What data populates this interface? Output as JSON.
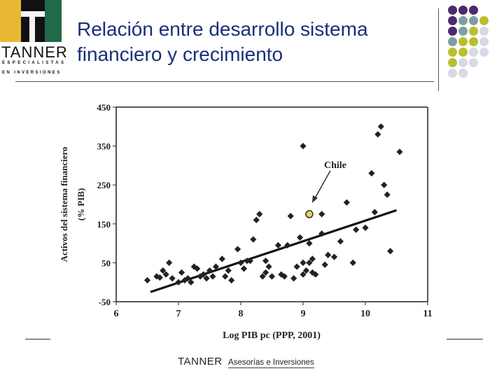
{
  "slide": {
    "title_line1": "Relación entre desarrollo sistema",
    "title_line2": "financiero y crecimiento"
  },
  "logo": {
    "name": "TANNER",
    "sub1": "ESPECIALISTAS",
    "sub2": "EN INVERSIONES",
    "colors": [
      "#e9b833",
      "#111111",
      "#1f6b4a"
    ]
  },
  "footer": {
    "brand": "TANNER",
    "tagline": "Asesorías e Inversiones"
  },
  "decor": {
    "dot_colors": [
      "#4a2b6b",
      "#7f9ea3",
      "#b9bf2f",
      "#d9d9e6"
    ]
  },
  "chart_data": {
    "type": "scatter",
    "title": "",
    "xlabel": "Log PIB pc (PPP, 2001)",
    "ylabel_line1": "Activos del sistema financiero",
    "ylabel_line2": "(% PIB)",
    "xlim": [
      6,
      11
    ],
    "ylim": [
      -50,
      450
    ],
    "xticks": [
      6,
      7,
      8,
      9,
      10,
      11
    ],
    "yticks": [
      -50,
      50,
      150,
      250,
      350,
      450
    ],
    "grid": false,
    "points": [
      [
        6.5,
        5
      ],
      [
        6.65,
        15
      ],
      [
        6.7,
        12
      ],
      [
        6.75,
        30
      ],
      [
        6.8,
        20
      ],
      [
        6.85,
        50
      ],
      [
        6.9,
        10
      ],
      [
        7.0,
        0
      ],
      [
        7.05,
        25
      ],
      [
        7.1,
        5
      ],
      [
        7.15,
        10
      ],
      [
        7.2,
        0
      ],
      [
        7.25,
        40
      ],
      [
        7.3,
        35
      ],
      [
        7.35,
        15
      ],
      [
        7.4,
        20
      ],
      [
        7.45,
        10
      ],
      [
        7.5,
        30
      ],
      [
        7.55,
        15
      ],
      [
        7.6,
        40
      ],
      [
        7.7,
        60
      ],
      [
        7.75,
        15
      ],
      [
        7.8,
        30
      ],
      [
        7.85,
        5
      ],
      [
        7.95,
        85
      ],
      [
        8.0,
        50
      ],
      [
        8.05,
        35
      ],
      [
        8.1,
        55
      ],
      [
        8.15,
        55
      ],
      [
        8.2,
        110
      ],
      [
        8.25,
        160
      ],
      [
        8.3,
        175
      ],
      [
        8.35,
        15
      ],
      [
        8.4,
        25
      ],
      [
        8.4,
        55
      ],
      [
        8.45,
        40
      ],
      [
        8.5,
        15
      ],
      [
        8.6,
        95
      ],
      [
        8.65,
        20
      ],
      [
        8.7,
        15
      ],
      [
        8.75,
        95
      ],
      [
        8.8,
        170
      ],
      [
        8.85,
        10
      ],
      [
        8.9,
        40
      ],
      [
        8.95,
        115
      ],
      [
        9.0,
        50
      ],
      [
        9.0,
        20
      ],
      [
        9.05,
        30
      ],
      [
        9.1,
        100
      ],
      [
        9.1,
        50
      ],
      [
        9.15,
        60
      ],
      [
        9.15,
        25
      ],
      [
        9.2,
        20
      ],
      [
        9.3,
        125
      ],
      [
        9.35,
        45
      ],
      [
        9.4,
        70
      ],
      [
        9.5,
        65
      ],
      [
        9.6,
        105
      ],
      [
        9.7,
        205
      ],
      [
        9.8,
        50
      ],
      [
        9.85,
        135
      ],
      [
        10.0,
        140
      ],
      [
        10.1,
        280
      ],
      [
        10.15,
        180
      ],
      [
        10.2,
        380
      ],
      [
        10.25,
        400
      ],
      [
        10.3,
        250
      ],
      [
        10.35,
        225
      ],
      [
        10.4,
        80
      ],
      [
        10.55,
        335
      ],
      [
        9.0,
        350
      ],
      [
        9.3,
        175
      ]
    ],
    "highlight": {
      "label": "Chile",
      "x": 9.1,
      "y": 175
    },
    "trendline": {
      "x": [
        6.55,
        10.5
      ],
      "y": [
        -25,
        185
      ]
    },
    "colors": {
      "points": "#222222",
      "highlight": "#e6d84a",
      "trend": "#111111"
    }
  }
}
